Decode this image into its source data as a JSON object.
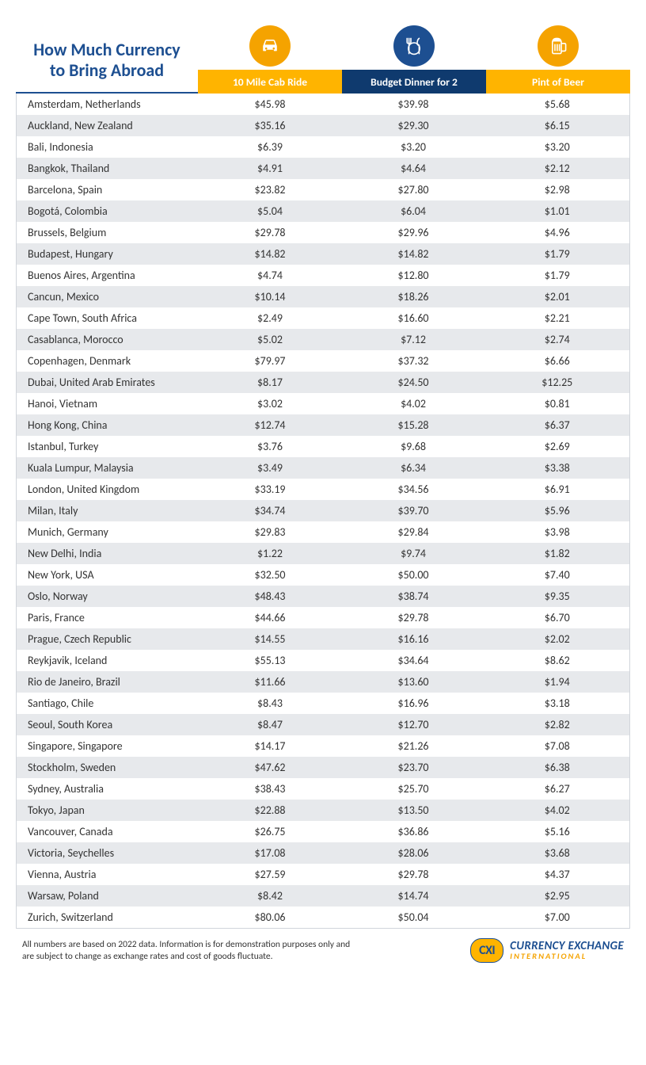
{
  "title": "How Much Currency to Bring Abroad",
  "colors": {
    "brand_blue": "#1d4f91",
    "accent_orange": "#f5a300",
    "header_yellow": "#ffb400",
    "header_navy": "#0f3a6e",
    "row_even_bg": "#ffffff",
    "row_odd_bg": "#e7e9ec",
    "text": "#333333",
    "white": "#ffffff",
    "border_gray": "#d1d5db"
  },
  "columns": [
    {
      "id": "cab",
      "label": "10 Mile Cab Ride",
      "bar_bg": "#ffb400",
      "bar_text": "#ffffff",
      "icon_bg": "#f5a300",
      "icon": "car"
    },
    {
      "id": "dinner",
      "label": "Budget Dinner for 2",
      "bar_bg": "#0f3a6e",
      "bar_text": "#ffffff",
      "icon_bg": "#1d4f91",
      "icon": "dinner"
    },
    {
      "id": "beer",
      "label": "Pint of Beer",
      "bar_bg": "#ffb400",
      "bar_text": "#ffffff",
      "icon_bg": "#f5a300",
      "icon": "beer"
    }
  ],
  "rows": [
    {
      "city": "Amsterdam, Netherlands",
      "cab": "$45.98",
      "dinner": "$39.98",
      "beer": "$5.68"
    },
    {
      "city": "Auckland, New Zealand",
      "cab": "$35.16",
      "dinner": "$29.30",
      "beer": "$6.15"
    },
    {
      "city": "Bali, Indonesia",
      "cab": "$6.39",
      "dinner": "$3.20",
      "beer": "$3.20"
    },
    {
      "city": "Bangkok, Thailand",
      "cab": "$4.91",
      "dinner": "$4.64",
      "beer": "$2.12"
    },
    {
      "city": "Barcelona, Spain",
      "cab": "$23.82",
      "dinner": "$27.80",
      "beer": "$2.98"
    },
    {
      "city": "Bogotá, Colombia",
      "cab": "$5.04",
      "dinner": "$6.04",
      "beer": "$1.01"
    },
    {
      "city": "Brussels, Belgium",
      "cab": "$29.78",
      "dinner": "$29.96",
      "beer": "$4.96"
    },
    {
      "city": "Budapest, Hungary",
      "cab": "$14.82",
      "dinner": "$14.82",
      "beer": "$1.79"
    },
    {
      "city": "Buenos Aires, Argentina",
      "cab": "$4.74",
      "dinner": "$12.80",
      "beer": "$1.79"
    },
    {
      "city": "Cancun, Mexico",
      "cab": "$10.14",
      "dinner": "$18.26",
      "beer": "$2.01"
    },
    {
      "city": "Cape Town, South Africa",
      "cab": "$2.49",
      "dinner": "$16.60",
      "beer": "$2.21"
    },
    {
      "city": "Casablanca, Morocco",
      "cab": "$5.02",
      "dinner": "$7.12",
      "beer": "$2.74"
    },
    {
      "city": "Copenhagen, Denmark",
      "cab": "$79.97",
      "dinner": "$37.32",
      "beer": "$6.66"
    },
    {
      "city": "Dubai, United Arab Emirates",
      "cab": "$8.17",
      "dinner": "$24.50",
      "beer": "$12.25"
    },
    {
      "city": "Hanoi, Vietnam",
      "cab": "$3.02",
      "dinner": "$4.02",
      "beer": "$0.81"
    },
    {
      "city": "Hong Kong, China",
      "cab": "$12.74",
      "dinner": "$15.28",
      "beer": "$6.37"
    },
    {
      "city": "Istanbul, Turkey",
      "cab": "$3.76",
      "dinner": "$9.68",
      "beer": "$2.69"
    },
    {
      "city": "Kuala Lumpur, Malaysia",
      "cab": "$3.49",
      "dinner": "$6.34",
      "beer": "$3.38"
    },
    {
      "city": "London, United Kingdom",
      "cab": "$33.19",
      "dinner": "$34.56",
      "beer": "$6.91"
    },
    {
      "city": "Milan, Italy",
      "cab": "$34.74",
      "dinner": "$39.70",
      "beer": "$5.96"
    },
    {
      "city": "Munich, Germany",
      "cab": "$29.83",
      "dinner": "$29.84",
      "beer": "$3.98"
    },
    {
      "city": "New Delhi, India",
      "cab": "$1.22",
      "dinner": "$9.74",
      "beer": "$1.82"
    },
    {
      "city": "New York, USA",
      "cab": "$32.50",
      "dinner": "$50.00",
      "beer": "$7.40"
    },
    {
      "city": "Oslo, Norway",
      "cab": "$48.43",
      "dinner": "$38.74",
      "beer": "$9.35"
    },
    {
      "city": "Paris, France",
      "cab": "$44.66",
      "dinner": "$29.78",
      "beer": "$6.70"
    },
    {
      "city": "Prague, Czech Republic",
      "cab": "$14.55",
      "dinner": "$16.16",
      "beer": "$2.02"
    },
    {
      "city": "Reykjavik, Iceland",
      "cab": "$55.13",
      "dinner": "$34.64",
      "beer": "$8.62"
    },
    {
      "city": "Rio de Janeiro, Brazil",
      "cab": "$11.66",
      "dinner": "$13.60",
      "beer": "$1.94"
    },
    {
      "city": "Santiago, Chile",
      "cab": "$8.43",
      "dinner": "$16.96",
      "beer": "$3.18"
    },
    {
      "city": "Seoul, South Korea",
      "cab": "$8.47",
      "dinner": "$12.70",
      "beer": "$2.82"
    },
    {
      "city": "Singapore, Singapore",
      "cab": "$14.17",
      "dinner": "$21.26",
      "beer": "$7.08"
    },
    {
      "city": "Stockholm, Sweden",
      "cab": "$47.62",
      "dinner": "$23.70",
      "beer": "$6.38"
    },
    {
      "city": "Sydney, Australia",
      "cab": "$38.43",
      "dinner": "$25.70",
      "beer": "$6.27"
    },
    {
      "city": "Tokyo, Japan",
      "cab": "$22.88",
      "dinner": "$13.50",
      "beer": "$4.02"
    },
    {
      "city": "Vancouver, Canada",
      "cab": "$26.75",
      "dinner": "$36.86",
      "beer": "$5.16"
    },
    {
      "city": "Victoria, Seychelles",
      "cab": "$17.08",
      "dinner": "$28.06",
      "beer": "$3.68"
    },
    {
      "city": "Vienna, Austria",
      "cab": "$27.59",
      "dinner": "$29.78",
      "beer": "$4.37"
    },
    {
      "city": "Warsaw, Poland",
      "cab": "$8.42",
      "dinner": "$14.74",
      "beer": "$2.95"
    },
    {
      "city": "Zurich, Switzerland",
      "cab": "$80.06",
      "dinner": "$50.04",
      "beer": "$7.00"
    }
  ],
  "footnote": "All numbers are based on 2022 data. Information is for demonstration purposes only and are subject to change as exchange rates and cost of goods fluctuate.",
  "logo": {
    "badge_text": "CXI",
    "line1": "CURRENCY EXCHANGE",
    "line2": "INTERNATIONAL"
  },
  "icons": {
    "car": "<svg viewBox='0 0 40 40' width='32' height='32'><path fill='#ffffff' d='M9 20 l3 -8 q1 -2 3 -2 h10 q2 0 3 2 l3 8 v7 q0 1 -1 1 h-3 q-1 0 -1 -1 v-1 h-12 v1 q0 1 -1 1 h-3 q-1 0 -1 -1 z M14 12 l-2 6 h16 l-2 -6 z' /><circle cx='14' cy='24' r='1.6' fill='#f5a300'/><circle cx='26' cy='24' r='1.6' fill='#f5a300'/></svg>",
    "dinner": "<svg viewBox='0 0 40 40' width='32' height='32'><g fill='none' stroke='#ffffff' stroke-width='2' stroke-linecap='round'><path d='M12 8 v8 M9 8 v6 q0 2 3 2 q3 0 3 -2 v-6 M12 16 v16'/><path d='M28 8 q-3 2 -3 8 q0 3 3 3 v13'/><circle cx='20' cy='24' r='9'/></g></svg>",
    "beer": "<svg viewBox='0 0 40 40' width='32' height='32'><g fill='none' stroke='#ffffff' stroke-width='2' stroke-linejoin='round'><rect x='11' y='12' width='14' height='20' rx='2'/><path d='M25 16 h5 q2 0 2 2 v8 q0 2 -2 2 h-5'/><path d='M11 13 q1 -5 7 -5 q6 0 7 5' fill='#ffffff'/><line x1='15' y1='17' x2='15' y2='28'/><line x1='18.5' y1='17' x2='18.5' y2='28'/><line x1='22' y1='17' x2='22' y2='28'/></g></svg>"
  }
}
